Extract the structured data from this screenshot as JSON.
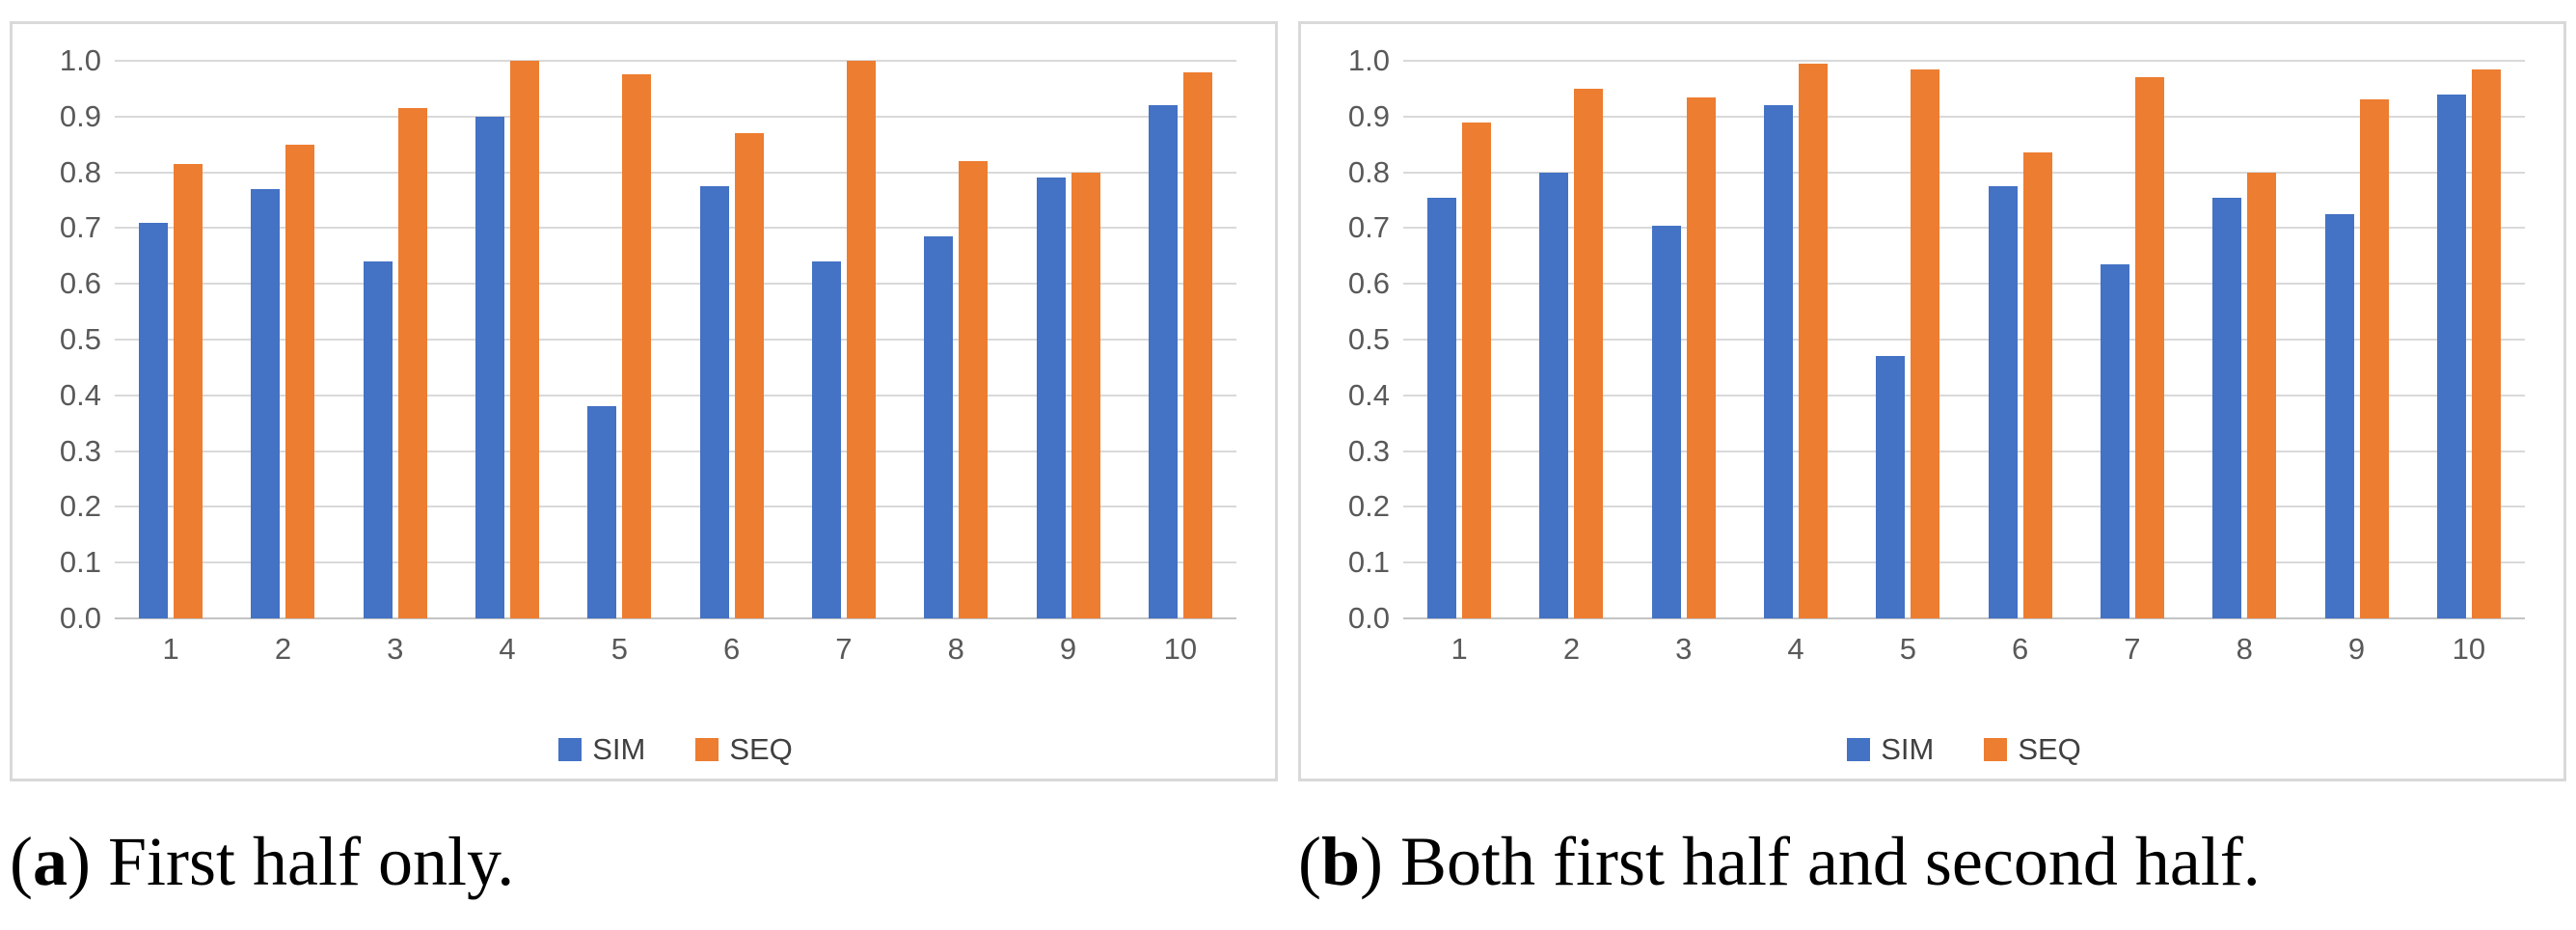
{
  "chart_data": [
    {
      "type": "bar",
      "panel": "a",
      "title": "",
      "xlabel": "",
      "ylabel": "",
      "categories": [
        "1",
        "2",
        "3",
        "4",
        "5",
        "6",
        "7",
        "8",
        "9",
        "10"
      ],
      "series": [
        {
          "name": "SIM",
          "color": "#4472C4",
          "values": [
            0.71,
            0.77,
            0.64,
            0.9,
            0.38,
            0.775,
            0.64,
            0.685,
            0.79,
            0.92
          ]
        },
        {
          "name": "SEQ",
          "color": "#ED7D31",
          "values": [
            0.815,
            0.85,
            0.915,
            1.0,
            0.975,
            0.87,
            1.0,
            0.82,
            0.8,
            0.98
          ]
        }
      ],
      "ylim": [
        0.0,
        1.0
      ],
      "yticks": [
        "0.0",
        "0.1",
        "0.2",
        "0.3",
        "0.4",
        "0.5",
        "0.6",
        "0.7",
        "0.8",
        "0.9",
        "1.0"
      ],
      "grid": true,
      "legend_position": "bottom"
    },
    {
      "type": "bar",
      "panel": "b",
      "title": "",
      "xlabel": "",
      "ylabel": "",
      "categories": [
        "1",
        "2",
        "3",
        "4",
        "5",
        "6",
        "7",
        "8",
        "9",
        "10"
      ],
      "series": [
        {
          "name": "SIM",
          "color": "#4472C4",
          "values": [
            0.755,
            0.8,
            0.705,
            0.92,
            0.47,
            0.775,
            0.635,
            0.755,
            0.725,
            0.94
          ]
        },
        {
          "name": "SEQ",
          "color": "#ED7D31",
          "values": [
            0.89,
            0.95,
            0.935,
            0.995,
            0.985,
            0.835,
            0.97,
            0.8,
            0.93,
            0.985
          ]
        }
      ],
      "ylim": [
        0.0,
        1.0
      ],
      "yticks": [
        "0.0",
        "0.1",
        "0.2",
        "0.3",
        "0.4",
        "0.5",
        "0.6",
        "0.7",
        "0.8",
        "0.9",
        "1.0"
      ],
      "grid": true,
      "legend_position": "bottom"
    }
  ],
  "colors": {
    "sim": "#4472C4",
    "seq": "#ED7D31",
    "gridline": "#D9D9D9",
    "axis_text": "#595959",
    "panel_border": "#D9D9D9"
  },
  "captions": [
    {
      "prefix": "(",
      "label": "a",
      "suffix": ") First half only."
    },
    {
      "prefix": "(",
      "label": "b",
      "suffix": ") Both first half and second half."
    }
  ]
}
